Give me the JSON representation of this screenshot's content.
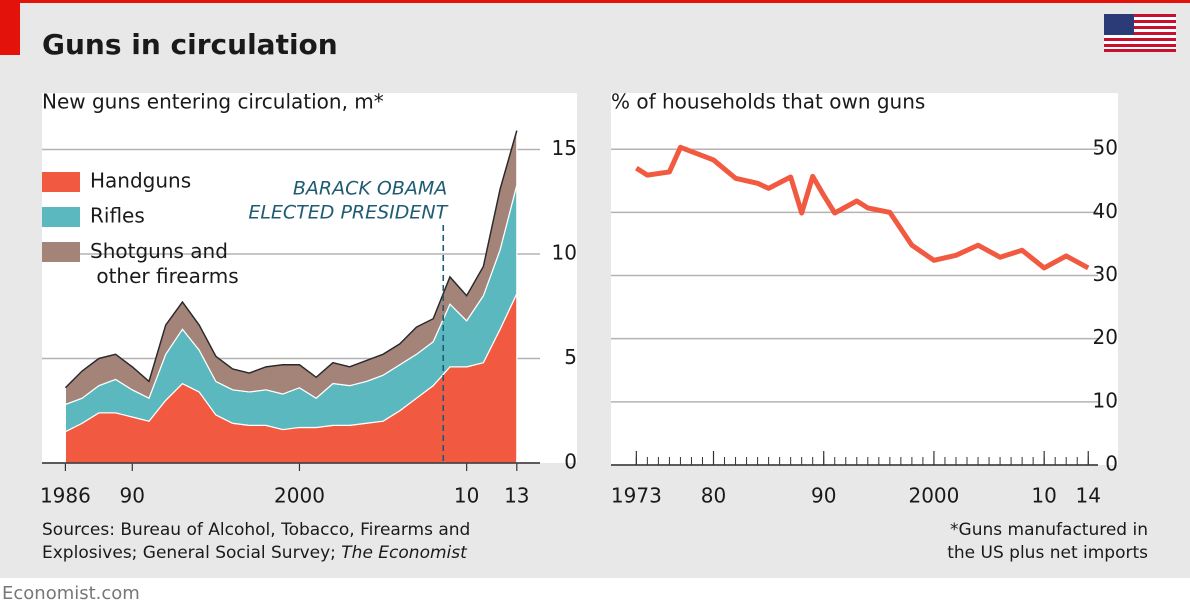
{
  "title": "Guns in circulation",
  "chart_data": [
    {
      "type": "stacked-area",
      "title": "New guns entering circulation, m*",
      "x": [
        1986,
        1987,
        1988,
        1989,
        1990,
        1991,
        1992,
        1993,
        1994,
        1995,
        1996,
        1997,
        1998,
        1999,
        2000,
        2001,
        2002,
        2003,
        2004,
        2005,
        2006,
        2007,
        2008,
        2009,
        2010,
        2011,
        2012,
        2013
      ],
      "series": [
        {
          "name": "Handguns",
          "color": "#f15a40",
          "values": [
            1.5,
            1.9,
            2.4,
            2.4,
            2.2,
            2.0,
            3.0,
            3.8,
            3.4,
            2.3,
            1.9,
            1.8,
            1.8,
            1.6,
            1.7,
            1.7,
            1.8,
            1.8,
            1.9,
            2.0,
            2.5,
            3.1,
            3.7,
            4.6,
            4.6,
            4.8,
            6.4,
            8.1
          ]
        },
        {
          "name": "Rifles",
          "color": "#5cb8bf",
          "values": [
            1.3,
            1.2,
            1.3,
            1.6,
            1.3,
            1.1,
            2.2,
            2.6,
            2.0,
            1.6,
            1.6,
            1.6,
            1.7,
            1.7,
            1.9,
            1.4,
            2.0,
            1.9,
            2.0,
            2.2,
            2.2,
            2.1,
            2.1,
            3.0,
            2.2,
            3.2,
            3.8,
            5.2
          ]
        },
        {
          "name": "Shotguns and other firearms",
          "color": "#a48478",
          "values": [
            0.8,
            1.3,
            1.3,
            1.2,
            1.1,
            0.8,
            1.4,
            1.3,
            1.2,
            1.2,
            1.0,
            0.9,
            1.1,
            1.4,
            1.1,
            1.0,
            1.0,
            0.9,
            1.0,
            1.0,
            1.0,
            1.3,
            1.1,
            1.3,
            1.2,
            1.4,
            2.9,
            2.6
          ]
        }
      ],
      "annotation": {
        "text": [
          "BARACK OBAMA",
          "ELECTED PRESIDENT"
        ],
        "x": 2008.6
      },
      "xlim": [
        1984.6,
        2016.6
      ],
      "xticks": [
        1986,
        {
          "value": 1990,
          "label": "90"
        },
        2000,
        {
          "value": 2010,
          "label": "10"
        },
        {
          "value": 2013,
          "label": "13"
        }
      ],
      "ylim": [
        0,
        17.7
      ],
      "yticks": [
        0,
        5,
        10,
        15
      ],
      "grid": true
    },
    {
      "type": "line",
      "title": "% of households that own guns",
      "x": [
        1973,
        1974,
        1976,
        1977,
        1980,
        1982,
        1984,
        1985,
        1987,
        1988,
        1989,
        1990,
        1991,
        1993,
        1994,
        1996,
        1998,
        2000,
        2002,
        2004,
        2006,
        2008,
        2010,
        2012,
        2014
      ],
      "series": [
        {
          "name": "Households owning guns",
          "color": "#f15a40",
          "values": [
            47.0,
            45.9,
            46.4,
            50.3,
            48.3,
            45.4,
            44.6,
            43.8,
            45.6,
            39.9,
            45.7,
            42.7,
            39.9,
            41.8,
            40.7,
            40.0,
            34.8,
            32.4,
            33.2,
            34.8,
            32.9,
            34.0,
            31.2,
            33.1,
            31.2
          ]
        }
      ],
      "xlim": [
        1970.7,
        2016.7
      ],
      "xticks": [
        1973,
        {
          "value": 1980,
          "label": "80"
        },
        {
          "value": 1990,
          "label": "90"
        },
        2000,
        {
          "value": 2010,
          "label": "10"
        },
        {
          "value": 2014,
          "label": "14"
        }
      ],
      "ylim": [
        0,
        58.9
      ],
      "yticks": [
        0,
        10,
        20,
        30,
        40,
        50
      ],
      "grid": true
    }
  ],
  "sources": [
    "Sources: Bureau of Alcohol, Tobacco, Firearms and",
    "Explosives;  General Social Survey; ",
    "The Economist"
  ],
  "footnote": [
    "*Guns manufactured in",
    "the US plus net imports"
  ],
  "brand": "Economist.com"
}
